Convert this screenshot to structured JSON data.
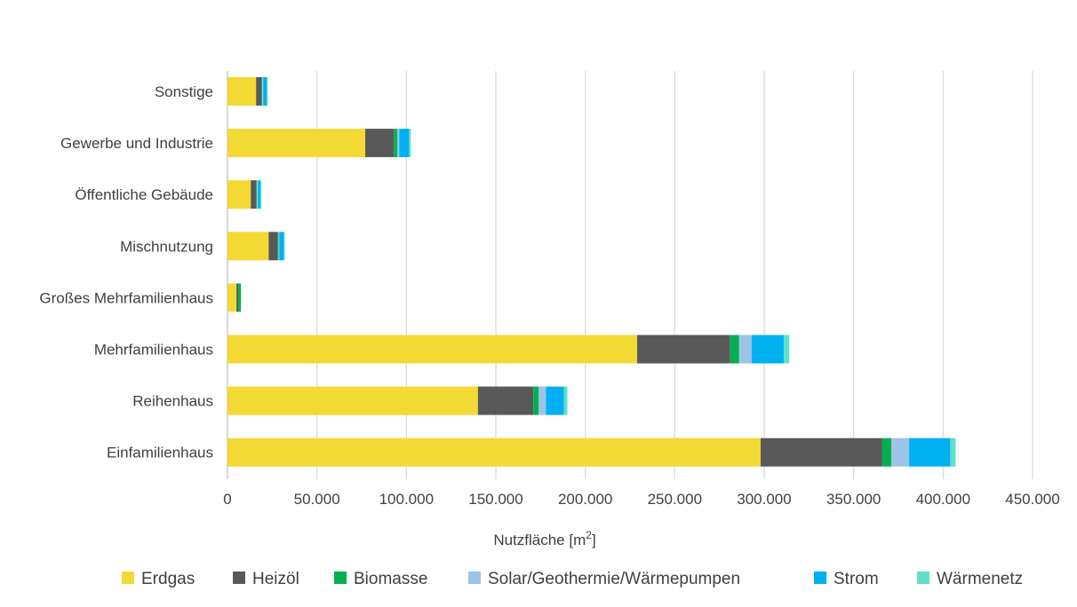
{
  "chart_data": {
    "type": "bar",
    "orientation": "horizontal",
    "stacked": true,
    "title": "",
    "xlabel_base": "Nutzfläche [m",
    "xlabel_sup": "2",
    "xlabel_end": "]",
    "ylabel": "",
    "xlim": [
      0,
      450000
    ],
    "xticks": [
      0,
      50000,
      100000,
      150000,
      200000,
      250000,
      300000,
      350000,
      400000,
      450000
    ],
    "xtick_labels": [
      "0",
      "50.000",
      "100.000",
      "150.000",
      "200.000",
      "250.000",
      "300.000",
      "350.000",
      "400.000",
      "450.000"
    ],
    "grid": "vertical",
    "legend_position": "bottom",
    "categories": [
      "Sonstige",
      "Gewerbe und Industrie",
      "Öffentliche Gebäude",
      "Mischnutzung",
      "Großes Mehrfamilienhaus",
      "Mehrfamilienhaus",
      "Reihenhaus",
      "Einfamilienhaus"
    ],
    "series": [
      {
        "name": "Erdgas",
        "color": "#F2D934",
        "values": [
          16000,
          77000,
          13000,
          23000,
          5000,
          229000,
          140000,
          298000
        ]
      },
      {
        "name": "Heizöl",
        "color": "#595959",
        "values": [
          3000,
          16000,
          3000,
          5000,
          1000,
          52000,
          31000,
          68000
        ]
      },
      {
        "name": "Biomasse",
        "color": "#00B050",
        "values": [
          500,
          2000,
          500,
          500,
          1500,
          5000,
          3000,
          5000
        ]
      },
      {
        "name": "Solar/Geothermie/Wärmepumpen",
        "color": "#9DC3E6",
        "values": [
          500,
          1000,
          500,
          500,
          0,
          7000,
          4000,
          10000
        ]
      },
      {
        "name": "Strom",
        "color": "#00B0F0",
        "values": [
          2000,
          5500,
          1500,
          2500,
          0,
          18000,
          10000,
          23000
        ]
      },
      {
        "name": "Wärmenetz",
        "color": "#5FE0C8",
        "values": [
          500,
          1000,
          500,
          500,
          0,
          3000,
          2000,
          3000
        ]
      }
    ]
  }
}
